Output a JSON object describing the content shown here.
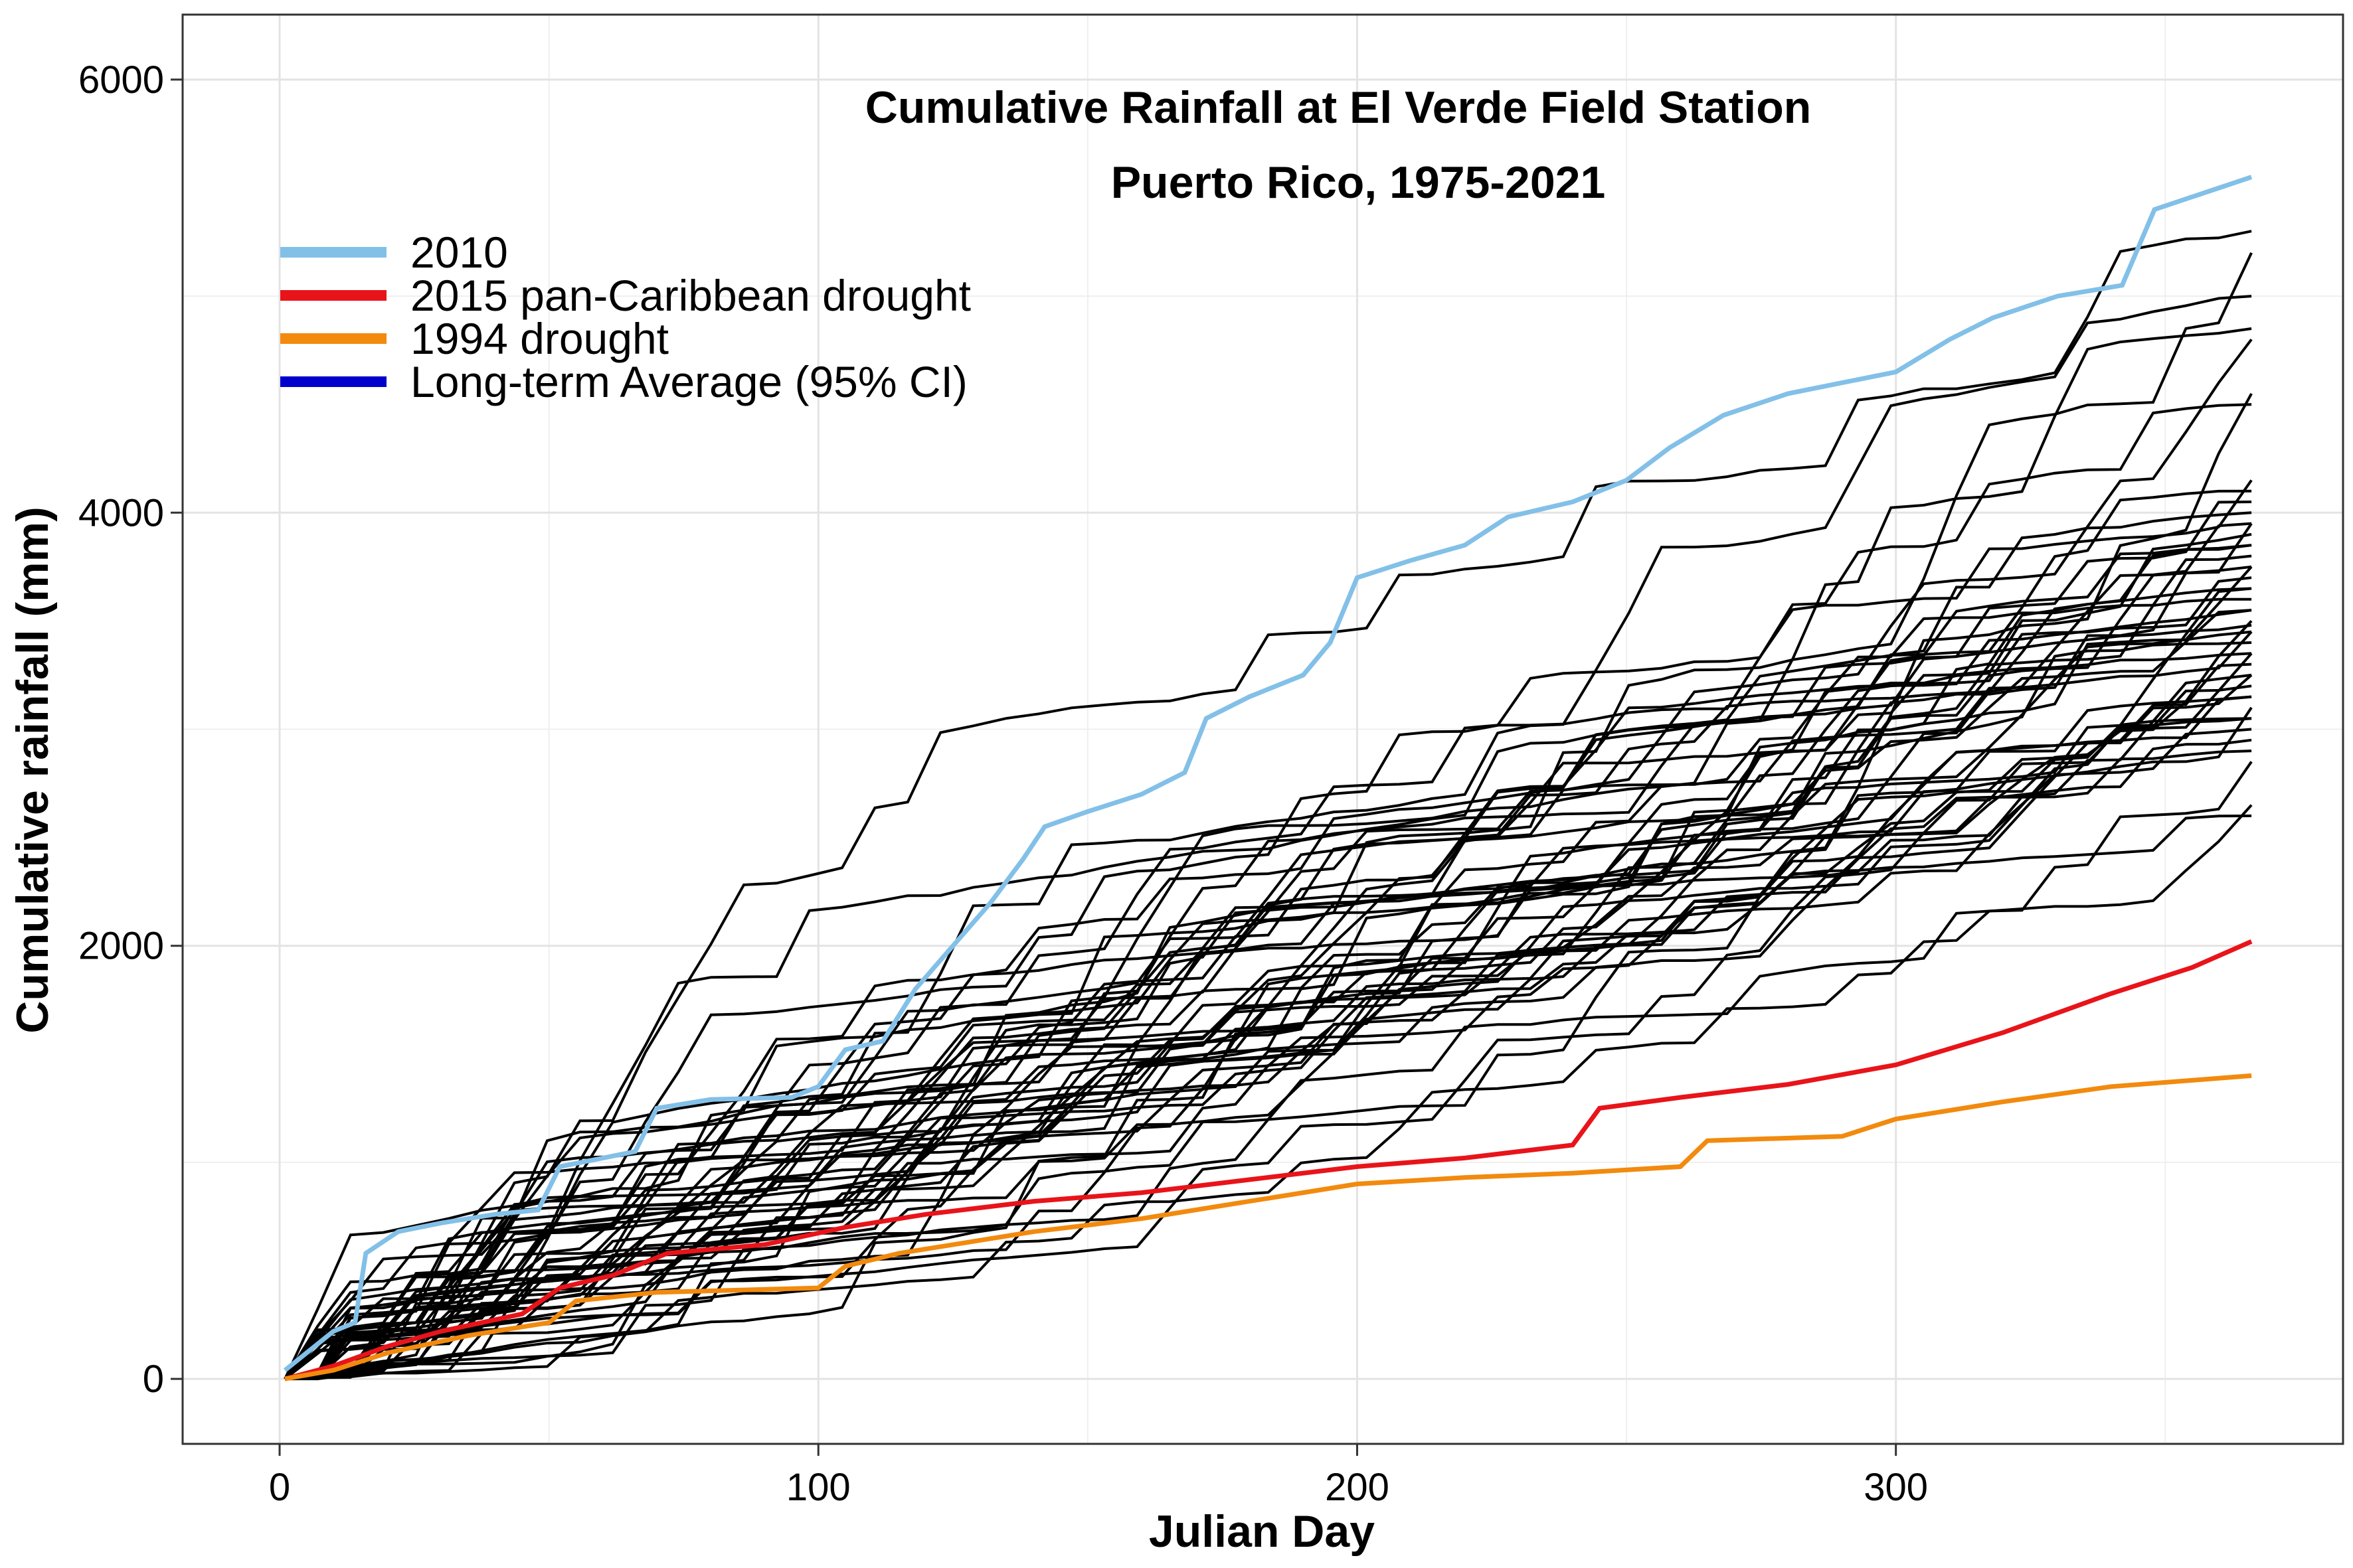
{
  "chart_data": {
    "type": "line",
    "title": "Cumulative Rainfall at El Verde Field Station",
    "subtitle": "Puerto Rico, 1975-2021",
    "xlabel": "Julian Day",
    "ylabel": "Cumulative rainfall (mm)",
    "xlim": [
      -18,
      383
    ],
    "ylim": [
      -300,
      6300
    ],
    "x_ticks": [
      0,
      100,
      200,
      300
    ],
    "y_ticks": [
      0,
      2000,
      4000,
      6000
    ],
    "grid": true,
    "legend_position": "top-left",
    "legend": [
      {
        "label": "2010",
        "color": "#82c0e8"
      },
      {
        "label": "2015 pan-Caribbean drought",
        "color": "#e8141a"
      },
      {
        "label": "1994 drought",
        "color": "#f28a0e"
      },
      {
        "label": "Long-term Average (95% CI)",
        "color": "#0000cc"
      }
    ],
    "highlighted_series": [
      {
        "name": "2010",
        "color": "#82c0e8",
        "points": [
          [
            1,
            40
          ],
          [
            10,
            220
          ],
          [
            14,
            260
          ],
          [
            16,
            580
          ],
          [
            22,
            680
          ],
          [
            30,
            720
          ],
          [
            40,
            760
          ],
          [
            48,
            780
          ],
          [
            52,
            980
          ],
          [
            60,
            1020
          ],
          [
            66,
            1050
          ],
          [
            70,
            1250
          ],
          [
            80,
            1290
          ],
          [
            95,
            1300
          ],
          [
            100,
            1350
          ],
          [
            105,
            1520
          ],
          [
            112,
            1560
          ],
          [
            118,
            1800
          ],
          [
            125,
            2000
          ],
          [
            132,
            2200
          ],
          [
            138,
            2400
          ],
          [
            142,
            2550
          ],
          [
            150,
            2620
          ],
          [
            160,
            2700
          ],
          [
            168,
            2800
          ],
          [
            172,
            3050
          ],
          [
            180,
            3150
          ],
          [
            190,
            3250
          ],
          [
            195,
            3400
          ],
          [
            200,
            3700
          ],
          [
            210,
            3780
          ],
          [
            220,
            3850
          ],
          [
            228,
            3980
          ],
          [
            240,
            4050
          ],
          [
            250,
            4150
          ],
          [
            258,
            4300
          ],
          [
            268,
            4450
          ],
          [
            280,
            4550
          ],
          [
            290,
            4600
          ],
          [
            300,
            4650
          ],
          [
            310,
            4800
          ],
          [
            318,
            4900
          ],
          [
            330,
            5000
          ],
          [
            342,
            5050
          ],
          [
            348,
            5400
          ],
          [
            360,
            5500
          ],
          [
            366,
            5550
          ]
        ]
      },
      {
        "name": "2015 pan-Caribbean drought",
        "color": "#e8141a",
        "points": [
          [
            1,
            0
          ],
          [
            10,
            60
          ],
          [
            20,
            150
          ],
          [
            30,
            220
          ],
          [
            45,
            300
          ],
          [
            52,
            420
          ],
          [
            62,
            480
          ],
          [
            72,
            580
          ],
          [
            90,
            620
          ],
          [
            105,
            700
          ],
          [
            120,
            760
          ],
          [
            140,
            820
          ],
          [
            160,
            860
          ],
          [
            180,
            920
          ],
          [
            200,
            980
          ],
          [
            220,
            1020
          ],
          [
            240,
            1080
          ],
          [
            245,
            1250
          ],
          [
            260,
            1300
          ],
          [
            280,
            1360
          ],
          [
            300,
            1450
          ],
          [
            320,
            1600
          ],
          [
            340,
            1780
          ],
          [
            355,
            1900
          ],
          [
            366,
            2020
          ]
        ]
      },
      {
        "name": "1994 drought",
        "color": "#f28a0e",
        "points": [
          [
            1,
            0
          ],
          [
            10,
            40
          ],
          [
            20,
            120
          ],
          [
            35,
            200
          ],
          [
            50,
            260
          ],
          [
            55,
            360
          ],
          [
            70,
            400
          ],
          [
            100,
            420
          ],
          [
            105,
            520
          ],
          [
            115,
            580
          ],
          [
            125,
            620
          ],
          [
            140,
            680
          ],
          [
            160,
            740
          ],
          [
            180,
            820
          ],
          [
            200,
            900
          ],
          [
            220,
            930
          ],
          [
            240,
            950
          ],
          [
            260,
            980
          ],
          [
            265,
            1100
          ],
          [
            290,
            1120
          ],
          [
            300,
            1200
          ],
          [
            320,
            1280
          ],
          [
            340,
            1350
          ],
          [
            366,
            1400
          ]
        ]
      }
    ],
    "other_years": {
      "count": 47,
      "color": "#000000",
      "end_values": [
        2600,
        2650,
        2850,
        2950,
        3000,
        3050,
        3100,
        3150,
        3200,
        3250,
        3300,
        3350,
        3400,
        3450,
        3500,
        3550,
        3600,
        3650,
        3700,
        3750,
        3800,
        3850,
        3900,
        3950,
        4000,
        4050,
        4100,
        4150,
        4500,
        4550,
        4800,
        4850,
        5000,
        5200,
        5300,
        2900,
        3050,
        3250,
        3350,
        3450,
        3550,
        3650,
        3750,
        3850,
        3950,
        3150,
        3480
      ]
    }
  }
}
